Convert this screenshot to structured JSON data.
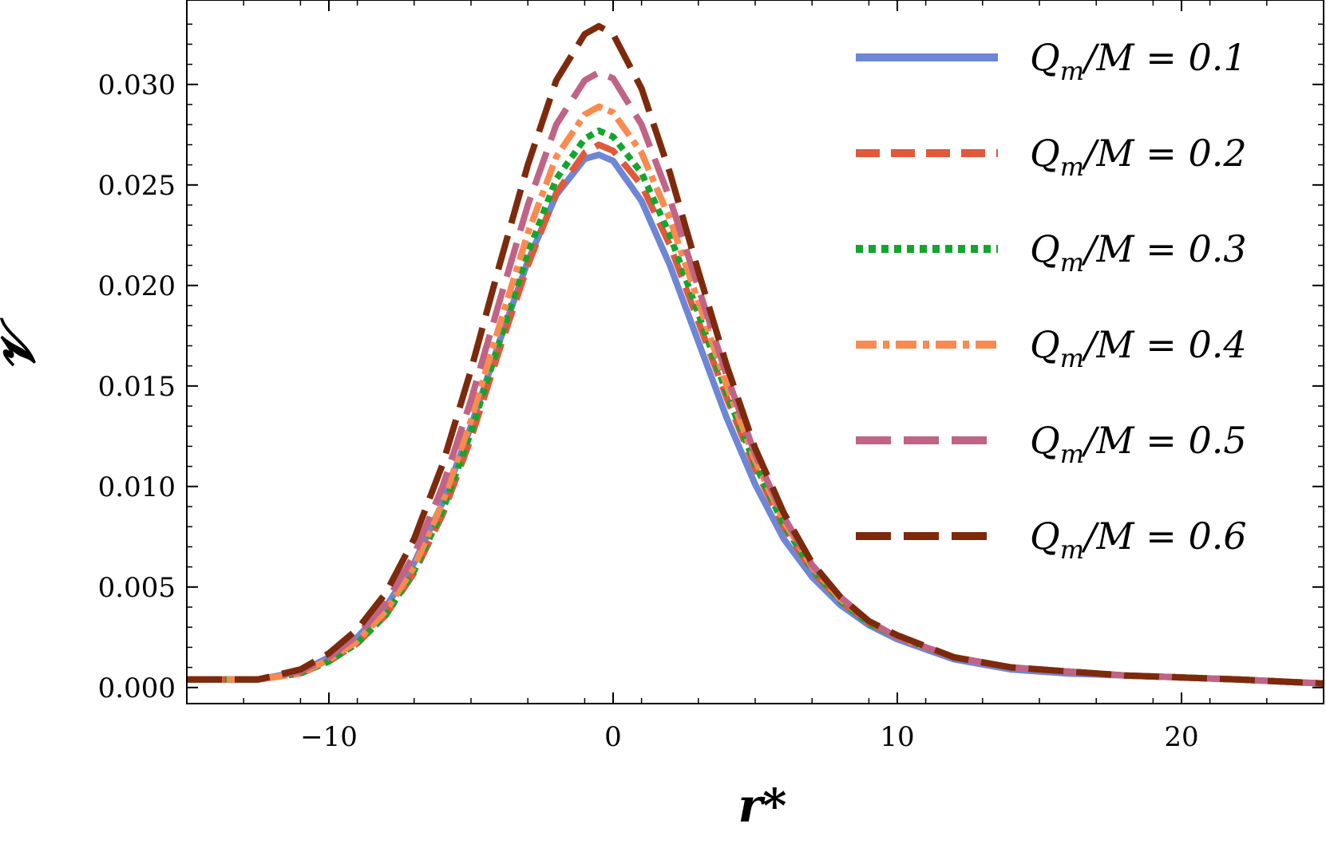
{
  "chart_data": {
    "type": "line",
    "xlabel": "r*",
    "ylabel": "𝓥",
    "xlim": [
      -15,
      25
    ],
    "ylim": [
      -0.0008,
      0.0342
    ],
    "x_ticks": [
      -10,
      0,
      10,
      20
    ],
    "x_tick_labels": [
      "−10",
      "0",
      "10",
      "20"
    ],
    "y_ticks": [
      0.0,
      0.005,
      0.01,
      0.015,
      0.02,
      0.025,
      0.03
    ],
    "y_tick_labels": [
      "0.000",
      "0.005",
      "0.010",
      "0.015",
      "0.020",
      "0.025",
      "0.030"
    ],
    "grid": false,
    "legend_position": "top-right",
    "x": [
      -15,
      -12.5,
      -11,
      -10,
      -9,
      -8,
      -7,
      -6,
      -5,
      -4,
      -3,
      -2,
      -1,
      -0.5,
      0,
      1,
      2,
      3,
      4,
      5,
      6,
      7,
      8,
      9,
      10,
      12,
      14,
      16,
      18,
      20,
      22,
      25
    ],
    "series": [
      {
        "name": "Q_m/M = 0.1",
        "color": "#6d86d6",
        "dash": "solid",
        "values": [
          0.0004,
          0.0004,
          0.0008,
          0.0015,
          0.0025,
          0.004,
          0.0062,
          0.0092,
          0.013,
          0.0172,
          0.0212,
          0.0245,
          0.0263,
          0.0265,
          0.0262,
          0.0242,
          0.021,
          0.0172,
          0.0134,
          0.0101,
          0.0074,
          0.0055,
          0.0041,
          0.0031,
          0.0024,
          0.0014,
          0.0009,
          0.0007,
          0.0006,
          0.0005,
          0.0004,
          0.0002
        ]
      },
      {
        "name": "Q_m/M = 0.2",
        "color": "#e0593a",
        "dash": "dashed",
        "values": [
          0.0004,
          0.0004,
          0.0007,
          0.0013,
          0.0022,
          0.0036,
          0.0057,
          0.0086,
          0.0124,
          0.0168,
          0.021,
          0.0246,
          0.0266,
          0.027,
          0.0267,
          0.025,
          0.022,
          0.0182,
          0.0144,
          0.0109,
          0.008,
          0.0058,
          0.0043,
          0.0032,
          0.0025,
          0.0015,
          0.001,
          0.0008,
          0.0006,
          0.0005,
          0.0004,
          0.0002
        ]
      },
      {
        "name": "Q_m/M = 0.3",
        "color": "#13a62c",
        "dash": "dotted",
        "values": [
          0.0004,
          0.0004,
          0.0007,
          0.0013,
          0.0022,
          0.0036,
          0.0058,
          0.0088,
          0.0127,
          0.0172,
          0.0216,
          0.0253,
          0.0273,
          0.0277,
          0.0274,
          0.0256,
          0.0225,
          0.0186,
          0.0146,
          0.0111,
          0.0081,
          0.0059,
          0.0043,
          0.0032,
          0.0025,
          0.0015,
          0.001,
          0.0008,
          0.0006,
          0.0005,
          0.0004,
          0.0002
        ]
      },
      {
        "name": "Q_m/M = 0.4",
        "color": "#fa8a50",
        "dash": "dashdot",
        "values": [
          0.0004,
          0.0004,
          0.0007,
          0.0014,
          0.0023,
          0.0038,
          0.006,
          0.0092,
          0.0133,
          0.018,
          0.0226,
          0.0264,
          0.0285,
          0.0289,
          0.0286,
          0.0266,
          0.0233,
          0.0192,
          0.015,
          0.0113,
          0.0083,
          0.006,
          0.0044,
          0.0033,
          0.0025,
          0.0015,
          0.001,
          0.0008,
          0.0006,
          0.0005,
          0.0004,
          0.0002
        ]
      },
      {
        "name": "Q_m/M = 0.5",
        "color": "#c06486",
        "dash": "longdash",
        "values": [
          0.0004,
          0.0004,
          0.0008,
          0.0015,
          0.0026,
          0.0042,
          0.0066,
          0.01,
          0.0143,
          0.0192,
          0.024,
          0.028,
          0.0302,
          0.0306,
          0.0303,
          0.028,
          0.0243,
          0.0199,
          0.0155,
          0.0116,
          0.0085,
          0.0061,
          0.0045,
          0.0033,
          0.0025,
          0.0015,
          0.001,
          0.0008,
          0.0006,
          0.0005,
          0.0004,
          0.0002
        ]
      },
      {
        "name": "Q_m/M = 0.6",
        "color": "#7d2a0c",
        "dash": "longdash",
        "values": [
          0.0004,
          0.0004,
          0.0009,
          0.0017,
          0.0029,
          0.0047,
          0.0074,
          0.0111,
          0.0158,
          0.021,
          0.026,
          0.0302,
          0.0325,
          0.0329,
          0.0325,
          0.0298,
          0.0256,
          0.0207,
          0.016,
          0.0119,
          0.0087,
          0.0062,
          0.0045,
          0.0033,
          0.0026,
          0.0015,
          0.001,
          0.0008,
          0.0006,
          0.0005,
          0.0004,
          0.0002
        ]
      }
    ]
  },
  "legend": {
    "labels": [
      {
        "qm": "Q",
        "sub": "m",
        "rest": "/M = 0.1"
      },
      {
        "qm": "Q",
        "sub": "m",
        "rest": "/M = 0.2"
      },
      {
        "qm": "Q",
        "sub": "m",
        "rest": "/M = 0.3"
      },
      {
        "qm": "Q",
        "sub": "m",
        "rest": "/M = 0.4"
      },
      {
        "qm": "Q",
        "sub": "m",
        "rest": "/M = 0.5"
      },
      {
        "qm": "Q",
        "sub": "m",
        "rest": "/M = 0.6"
      }
    ]
  }
}
